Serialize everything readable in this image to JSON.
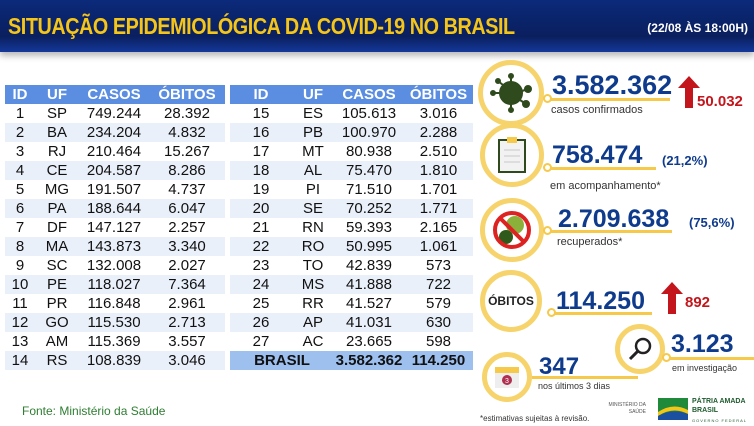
{
  "header": {
    "title": "SITUAÇÃO EPIDEMIOLÓGICA DA COVID-19 NO BRASIL",
    "date": "(22/08 ÀS 18:00H)"
  },
  "table": {
    "columns": [
      "ID",
      "UF",
      "CASOS",
      "ÓBITOS"
    ],
    "left": [
      [
        "1",
        "SP",
        "749.244",
        "28.392"
      ],
      [
        "2",
        "BA",
        "234.204",
        "4.832"
      ],
      [
        "3",
        "RJ",
        "210.464",
        "15.267"
      ],
      [
        "4",
        "CE",
        "204.587",
        "8.286"
      ],
      [
        "5",
        "MG",
        "191.507",
        "4.737"
      ],
      [
        "6",
        "PA",
        "188.644",
        "6.047"
      ],
      [
        "7",
        "DF",
        "147.127",
        "2.257"
      ],
      [
        "8",
        "MA",
        "143.873",
        "3.340"
      ],
      [
        "9",
        "SC",
        "132.008",
        "2.027"
      ],
      [
        "10",
        "PE",
        "118.027",
        "7.364"
      ],
      [
        "11",
        "PR",
        "116.848",
        "2.961"
      ],
      [
        "12",
        "GO",
        "115.530",
        "2.713"
      ],
      [
        "13",
        "AM",
        "115.369",
        "3.557"
      ],
      [
        "14",
        "RS",
        "108.839",
        "3.046"
      ]
    ],
    "right": [
      [
        "15",
        "ES",
        "105.613",
        "3.016"
      ],
      [
        "16",
        "PB",
        "100.970",
        "2.288"
      ],
      [
        "17",
        "MT",
        "80.938",
        "2.510"
      ],
      [
        "18",
        "AL",
        "75.470",
        "1.810"
      ],
      [
        "19",
        "PI",
        "71.510",
        "1.701"
      ],
      [
        "20",
        "SE",
        "70.252",
        "1.771"
      ],
      [
        "21",
        "RN",
        "59.393",
        "2.165"
      ],
      [
        "22",
        "RO",
        "50.995",
        "1.061"
      ],
      [
        "23",
        "TO",
        "42.839",
        "573"
      ],
      [
        "24",
        "MS",
        "41.888",
        "722"
      ],
      [
        "25",
        "RR",
        "41.527",
        "579"
      ],
      [
        "26",
        "AP",
        "41.031",
        "630"
      ],
      [
        "27",
        "AC",
        "23.665",
        "598"
      ]
    ],
    "total": {
      "label": "BRASIL",
      "casos": "3.582.362",
      "obitos": "114.250"
    }
  },
  "stats": {
    "confirmed": {
      "value": "3.582.362",
      "label": "casos confirmados",
      "increase": "50.032"
    },
    "monitoring": {
      "value": "758.474",
      "pct": "(21,2%)",
      "label": "em acompanhamento*"
    },
    "recovered": {
      "value": "2.709.638",
      "pct": "(75,6%)",
      "label": "recuperados*"
    },
    "deaths": {
      "badge": "ÓBITOS",
      "value": "114.250",
      "increase": "892"
    },
    "recent": {
      "value": "347",
      "label": "nos últimos 3 dias",
      "calendar": "3"
    },
    "investigation": {
      "value": "3.123",
      "label": "em investigação"
    }
  },
  "footer": {
    "source": "Fonte: Ministério da Saúde",
    "note": "*estimativas sujeitas à revisão.",
    "ministry": "MINISTÉRIO DA SAÚDE",
    "logo": "PÁTRIA AMADA BRASIL",
    "logo_sub": "GOVERNO FEDERAL"
  },
  "colors": {
    "header": "#0a1f5e",
    "title": "#f5c518",
    "table_header": "#5b8ee0",
    "accent": "#f6d36b",
    "value": "#0f3b8c",
    "increase": "#c3161c"
  }
}
